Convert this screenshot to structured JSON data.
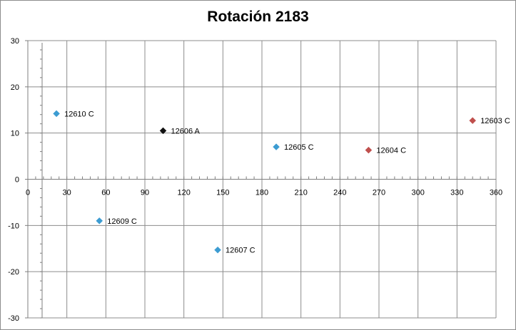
{
  "chart_data": {
    "type": "scatter",
    "title": "Rotación 2183",
    "xlabel": "",
    "ylabel": "",
    "xlim": [
      0,
      360
    ],
    "ylim": [
      -30,
      30
    ],
    "x_ticks": [
      0,
      30,
      60,
      90,
      120,
      150,
      180,
      210,
      240,
      270,
      300,
      330,
      360
    ],
    "y_ticks": [
      30,
      20,
      10,
      0,
      -10,
      -20,
      -30
    ],
    "grid": true,
    "legend": "none",
    "points": [
      {
        "label": "12610 C",
        "x": 22,
        "y": 14.2,
        "color": "#3c9cd2"
      },
      {
        "label": "12609 C",
        "x": 55,
        "y": -9.0,
        "color": "#3c9cd2"
      },
      {
        "label": "12606 A",
        "x": 104,
        "y": 10.5,
        "color": "#111111"
      },
      {
        "label": "12607 C",
        "x": 146,
        "y": -15.3,
        "color": "#3c9cd2"
      },
      {
        "label": "12605 C",
        "x": 191,
        "y": 7.0,
        "color": "#3c9cd2"
      },
      {
        "label": "12604 C",
        "x": 262,
        "y": 6.3,
        "color": "#c0504d"
      },
      {
        "label": "12603 C",
        "x": 342,
        "y": 12.7,
        "color": "#c0504d"
      }
    ]
  }
}
